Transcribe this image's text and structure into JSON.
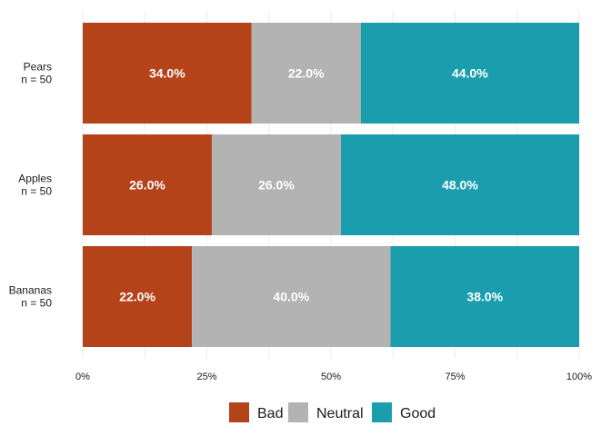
{
  "chart_data": {
    "type": "bar",
    "orientation": "horizontal",
    "stacked": true,
    "percent": true,
    "title": "",
    "xlabel": "",
    "ylabel": "",
    "xlim": [
      0,
      100
    ],
    "categories": [
      {
        "name": "Pears",
        "n_label": "n = 50"
      },
      {
        "name": "Apples",
        "n_label": "n = 50"
      },
      {
        "name": "Bananas",
        "n_label": "n = 50"
      }
    ],
    "series": [
      {
        "name": "Bad",
        "color": "#B5431A",
        "values": [
          34,
          26,
          22
        ],
        "labels": [
          "34.0%",
          "26.0%",
          "22.0%"
        ]
      },
      {
        "name": "Neutral",
        "color": "#B3B3B3",
        "values": [
          22,
          26,
          40
        ],
        "labels": [
          "22.0%",
          "26.0%",
          "40.0%"
        ]
      },
      {
        "name": "Good",
        "color": "#1A9EAE",
        "values": [
          44,
          48,
          38
        ],
        "labels": [
          "44.0%",
          "48.0%",
          "38.0%"
        ]
      }
    ],
    "x_ticks": [
      {
        "value": 0,
        "label": "0%"
      },
      {
        "value": 25,
        "label": "25%"
      },
      {
        "value": 50,
        "label": "50%"
      },
      {
        "value": 75,
        "label": "75%"
      },
      {
        "value": 100,
        "label": "100%"
      }
    ],
    "grid": true,
    "legend": {
      "position": "bottom"
    }
  }
}
